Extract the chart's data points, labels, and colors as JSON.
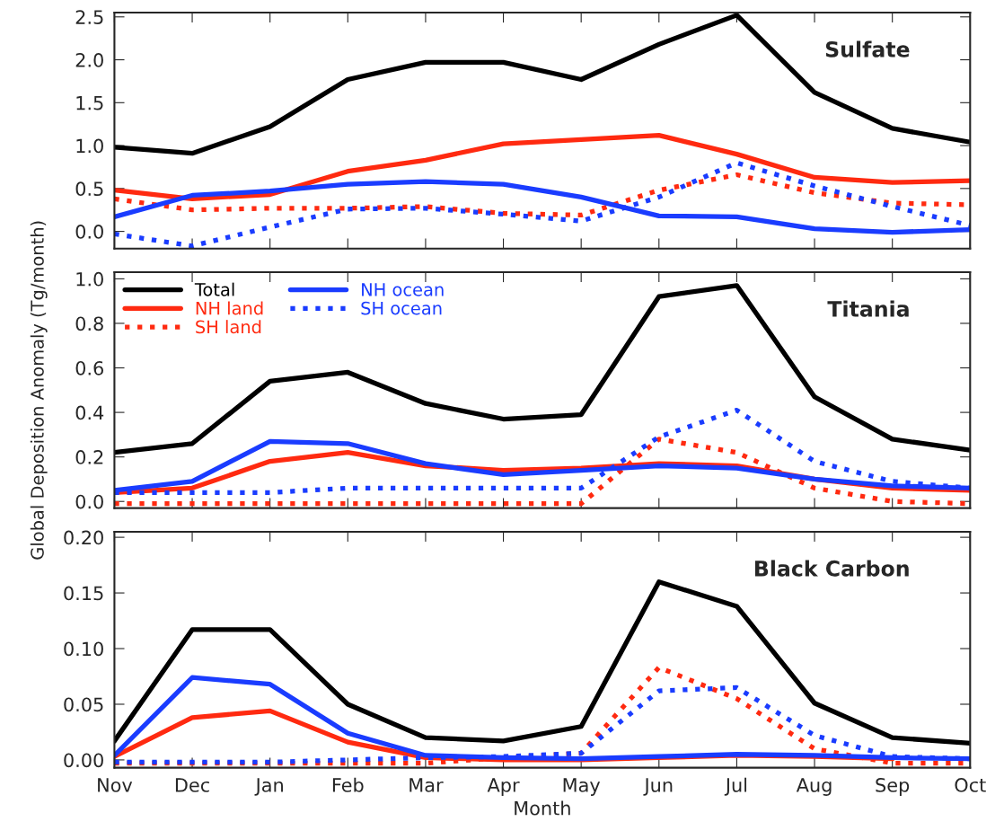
{
  "chart_data": [
    {
      "type": "line",
      "title": "Sulfate",
      "categories": [
        null,
        null,
        null,
        null,
        null,
        null,
        null,
        null,
        null,
        null,
        null,
        null
      ],
      "ylim": [
        -0.2,
        2.55
      ],
      "yticks": [
        {
          "value": 0,
          "label": "0.0"
        },
        0.5,
        {
          "value": 1,
          "label": "1.0"
        },
        1.5,
        {
          "value": 2,
          "label": "2.0"
        },
        2.5
      ],
      "tick_labels": "y",
      "grid": false,
      "legend": false,
      "series": [
        {
          "color": "#000000",
          "line_style": "solid",
          "values": [
            0.98,
            0.91,
            1.22,
            1.77,
            1.97,
            1.97,
            1.77,
            2.18,
            2.52,
            1.62,
            1.2,
            1.04
          ]
        },
        {
          "color": "#ff2a10",
          "line_style": "solid",
          "values": [
            0.48,
            0.38,
            0.43,
            0.7,
            0.83,
            1.02,
            1.07,
            1.12,
            0.9,
            0.63,
            0.57,
            0.59
          ]
        },
        {
          "color": "#ff2a10",
          "line_style": "dotted",
          "values": [
            0.38,
            0.25,
            0.27,
            0.27,
            0.29,
            0.21,
            0.19,
            0.48,
            0.66,
            0.45,
            0.33,
            0.31
          ]
        },
        {
          "color": "#1a3cff",
          "line_style": "solid",
          "values": [
            0.17,
            0.42,
            0.47,
            0.55,
            0.58,
            0.55,
            0.4,
            0.18,
            0.17,
            0.03,
            -0.01,
            0.02
          ]
        },
        {
          "color": "#1a3cff",
          "line_style": "dotted",
          "values": [
            -0.03,
            -0.17,
            0.05,
            0.26,
            0.27,
            0.2,
            0.12,
            0.4,
            0.8,
            0.53,
            0.29,
            0.07
          ]
        }
      ]
    },
    {
      "type": "line",
      "title": "Titania",
      "ylabel": "Global Deposition Anomaly (Tg/month)",
      "categories": [
        null,
        null,
        null,
        null,
        null,
        null,
        null,
        null,
        null,
        null,
        null,
        null
      ],
      "ylim": [
        -0.03,
        1.03
      ],
      "yticks": [
        {
          "value": 0,
          "label": "0.0"
        },
        0.2,
        0.4,
        0.6,
        0.8,
        {
          "value": 1,
          "label": "1.0"
        }
      ],
      "tick_labels": "y",
      "grid": false,
      "legend": "top left",
      "series": [
        {
          "name": "Total",
          "color": "#000000",
          "line_style": "solid",
          "values": [
            0.22,
            0.26,
            0.54,
            0.58,
            0.44,
            0.37,
            0.39,
            0.92,
            0.97,
            0.47,
            0.28,
            0.23
          ]
        },
        {
          "name": "NH land",
          "color": "#ff2a10",
          "line_style": "solid",
          "values": [
            0.04,
            0.06,
            0.18,
            0.22,
            0.16,
            0.14,
            0.15,
            0.17,
            0.16,
            0.1,
            0.06,
            0.05
          ]
        },
        {
          "name": "SH land",
          "color": "#ff2a10",
          "line_style": "dotted",
          "values": [
            -0.01,
            -0.01,
            -0.01,
            -0.01,
            -0.01,
            -0.01,
            -0.01,
            0.28,
            0.22,
            0.06,
            0.0,
            -0.01
          ]
        },
        {
          "name": "NH ocean",
          "color": "#1a3cff",
          "line_style": "solid",
          "values": [
            0.05,
            0.09,
            0.27,
            0.26,
            0.17,
            0.12,
            0.14,
            0.16,
            0.15,
            0.1,
            0.07,
            0.06
          ]
        },
        {
          "name": "SH ocean",
          "color": "#1a3cff",
          "line_style": "dotted",
          "values": [
            0.04,
            0.04,
            0.04,
            0.06,
            0.06,
            0.06,
            0.06,
            0.29,
            0.41,
            0.18,
            0.09,
            0.06
          ]
        }
      ]
    },
    {
      "type": "line",
      "title": "Black Carbon",
      "xlabel": "Month",
      "categories": [
        "Nov",
        "Dec",
        "Jan",
        "Feb",
        "Mar",
        "Apr",
        "May",
        "Jun",
        "Jul",
        "Aug",
        "Sep",
        "Oct"
      ],
      "ylim": [
        -0.007,
        0.205
      ],
      "yticks": [
        {
          "value": 0,
          "label": "0.00"
        },
        0.05,
        {
          "value": 0.1,
          "label": "0.10"
        },
        0.15,
        {
          "value": 0.2,
          "label": "0.20"
        }
      ],
      "grid": false,
      "legend": false,
      "series": [
        {
          "color": "#000000",
          "line_style": "solid",
          "values": [
            0.017,
            0.117,
            0.117,
            0.05,
            0.02,
            0.017,
            0.03,
            0.16,
            0.138,
            0.051,
            0.02,
            0.015
          ]
        },
        {
          "color": "#ff2a10",
          "line_style": "solid",
          "values": [
            0.003,
            0.038,
            0.044,
            0.016,
            0.002,
            0.0,
            0.0,
            0.002,
            0.004,
            0.003,
            0.001,
            null
          ]
        },
        {
          "color": "#ff2a10",
          "line_style": "dotted",
          "values": [
            -0.003,
            -0.003,
            -0.003,
            -0.003,
            -0.003,
            0.002,
            0.006,
            0.083,
            0.055,
            0.01,
            -0.003,
            -0.003
          ]
        },
        {
          "color": "#1a3cff",
          "line_style": "solid",
          "values": [
            0.004,
            0.074,
            0.068,
            0.024,
            0.004,
            0.002,
            0.001,
            0.003,
            0.005,
            0.004,
            0.002,
            0.001
          ]
        },
        {
          "color": "#1a3cff",
          "line_style": "dotted",
          "values": [
            -0.002,
            -0.002,
            -0.002,
            0.0,
            0.002,
            0.003,
            0.006,
            0.062,
            0.065,
            0.022,
            0.003,
            0.001
          ]
        }
      ]
    }
  ]
}
